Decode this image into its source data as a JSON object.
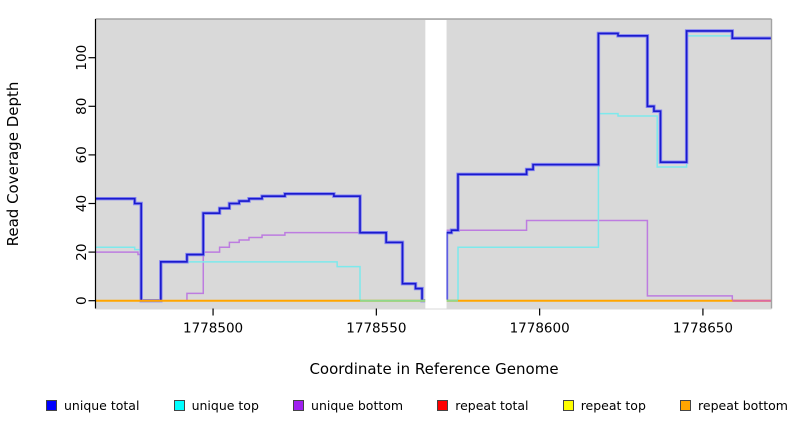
{
  "figure": {
    "x_axis_title": "Coordinate in Reference Genome",
    "y_axis_title": "Read Coverage Depth"
  },
  "chart_data": {
    "type": "line",
    "subtype": "step",
    "title": "",
    "xlabel": "Coordinate in Reference Genome",
    "ylabel": "Read Coverage Depth",
    "xlim": [
      1778464,
      1778671
    ],
    "ylim": [
      0,
      115
    ],
    "x_ticks": [
      1778500,
      1778550,
      1778600,
      1778650
    ],
    "y_ticks": [
      0,
      20,
      40,
      60,
      80,
      100
    ],
    "grid": false,
    "panel_background": "#D9D9D9",
    "panel_border_color": "#A3A3A3",
    "axis_color": "#000000",
    "gap_region": {
      "from": 1778565,
      "to": 1778571.5,
      "color": "#FFFFFF"
    },
    "legend_position": "bottom",
    "legend": [
      {
        "label": "unique total",
        "color": "#0000FF"
      },
      {
        "label": "unique top",
        "color": "#00FFFF"
      },
      {
        "label": "unique bottom",
        "color": "#A020F0"
      },
      {
        "label": "repeat total",
        "color": "#FF0000"
      },
      {
        "label": "repeat top",
        "color": "#FFFF00"
      },
      {
        "label": "repeat bottom",
        "color": "#FFA500"
      }
    ],
    "series": [
      {
        "name": "unique bottom",
        "line_color": "#BD7CE0",
        "line_width": 1.5,
        "segments": [
          {
            "points": [
              [
                1778464,
                20
              ],
              [
                1778477,
                19
              ],
              [
                1778478,
                0
              ],
              [
                1778492,
                3
              ],
              [
                1778497,
                20
              ],
              [
                1778502,
                22
              ],
              [
                1778505,
                24
              ],
              [
                1778508,
                25
              ],
              [
                1778511,
                26
              ],
              [
                1778515,
                27
              ],
              [
                1778522,
                28
              ],
              [
                1778553,
                24
              ],
              [
                1778558,
                7
              ],
              [
                1778562,
                5
              ],
              [
                1778564,
                0
              ]
            ],
            "end": 1778565
          },
          {
            "points": [
              [
                1778571.5,
                0
              ],
              [
                1778571.5,
                29
              ],
              [
                1778596,
                33
              ],
              [
                1778633,
                2
              ],
              [
                1778659,
                0
              ]
            ],
            "end": 1778671
          }
        ]
      },
      {
        "name": "unique top",
        "line_color": "#7DE9EC",
        "line_width": 1.5,
        "segments": [
          {
            "points": [
              [
                1778464,
                22
              ],
              [
                1778476,
                21
              ],
              [
                1778478,
                0
              ],
              [
                1778484,
                16
              ],
              [
                1778538,
                14
              ],
              [
                1778545,
                0
              ]
            ],
            "end": 1778565
          },
          {
            "points": [
              [
                1778575,
                0
              ],
              [
                1778575,
                22
              ],
              [
                1778618,
                77
              ],
              [
                1778624,
                76
              ],
              [
                1778636,
                55
              ],
              [
                1778645,
                109
              ],
              [
                1778659,
                108
              ]
            ],
            "end": 1778671
          }
        ]
      },
      {
        "name": "unique total",
        "line_color": "#1A1ACC",
        "halo_color": "#8585F2",
        "line_width": 1.6,
        "halo_width": 3.4,
        "segments": [
          {
            "points": [
              [
                1778464,
                42
              ],
              [
                1778476,
                40
              ],
              [
                1778478,
                0
              ],
              [
                1778484,
                16
              ],
              [
                1778492,
                19
              ],
              [
                1778497,
                36
              ],
              [
                1778502,
                38
              ],
              [
                1778505,
                40
              ],
              [
                1778508,
                41
              ],
              [
                1778511,
                42
              ],
              [
                1778515,
                43
              ],
              [
                1778522,
                44
              ],
              [
                1778537,
                43
              ],
              [
                1778545,
                28
              ],
              [
                1778553,
                24
              ],
              [
                1778558,
                7
              ],
              [
                1778562,
                5
              ],
              [
                1778564,
                0
              ]
            ],
            "end": 1778565
          },
          {
            "points": [
              [
                1778571.5,
                0
              ],
              [
                1778571.5,
                28
              ],
              [
                1778573,
                29
              ],
              [
                1778575,
                52
              ],
              [
                1778596,
                54
              ],
              [
                1778598,
                56
              ],
              [
                1778618,
                110
              ],
              [
                1778624,
                109
              ],
              [
                1778633,
                80
              ],
              [
                1778635,
                78
              ],
              [
                1778637,
                57
              ],
              [
                1778645,
                111
              ],
              [
                1778659,
                108
              ]
            ],
            "end": 1778671
          }
        ]
      },
      {
        "name": "repeat total",
        "line_color": "#DD2222",
        "line_width": 1.5,
        "segments": [
          {
            "points": [
              [
                1778464,
                0
              ]
            ],
            "end": 1778565
          },
          {
            "points": [
              [
                1778571.5,
                0
              ]
            ],
            "end": 1778671
          }
        ]
      },
      {
        "name": "repeat top",
        "line_color": "#EEee55",
        "line_width": 1.5,
        "segments": [
          {
            "points": [
              [
                1778464,
                0
              ]
            ],
            "end": 1778565
          },
          {
            "points": [
              [
                1778571.5,
                0
              ]
            ],
            "end": 1778671
          }
        ]
      },
      {
        "name": "repeat bottom",
        "line_color": "#FFA500",
        "line_width": 2,
        "segments": [
          {
            "points": [
              [
                1778464,
                0
              ]
            ],
            "end": 1778565
          },
          {
            "points": [
              [
                1778571.5,
                0
              ]
            ],
            "end": 1778671
          }
        ]
      }
    ],
    "baseline_overlays": [
      {
        "name": "unique-top-zero-tint",
        "color": "#8FD88F",
        "from": 1778545,
        "to": 1778565
      },
      {
        "name": "unique-top-zero-tint",
        "color": "#8FD88F",
        "from": 1778571.5,
        "to": 1778575
      },
      {
        "name": "unique-bottom-zero-tint",
        "color": "#DB69A4",
        "from": 1778659,
        "to": 1778671
      }
    ]
  }
}
